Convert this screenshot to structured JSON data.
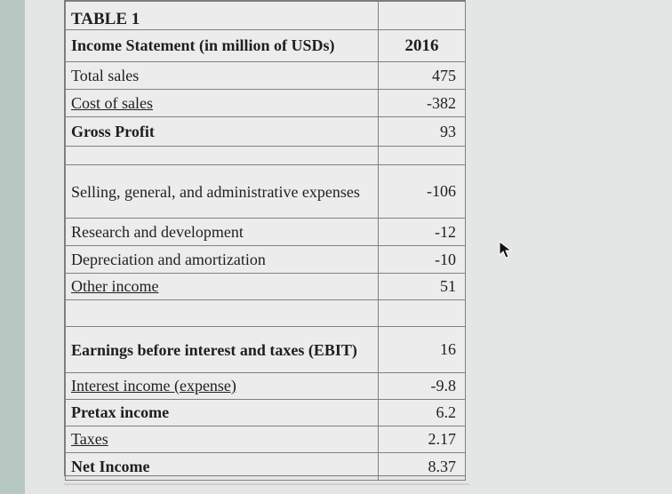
{
  "table": {
    "caption": "TABLE 1",
    "header": {
      "label": "Income Statement (in million of USDs)",
      "year": "2016"
    },
    "rows": [
      {
        "label": "Total sales",
        "value": "475"
      },
      {
        "label": "Cost of sales",
        "value": "-382"
      },
      {
        "label": "Gross Profit",
        "value": "93"
      },
      {
        "label": "",
        "value": ""
      },
      {
        "label": "Selling, general, and administrative expenses",
        "value": "-106"
      },
      {
        "label": "Research and development",
        "value": "-12"
      },
      {
        "label": "Depreciation and amortization",
        "value": "-10"
      },
      {
        "label": "Other income",
        "value": "51"
      },
      {
        "label": "",
        "value": ""
      },
      {
        "label": "Earnings before interest and taxes (EBIT)",
        "value": "16"
      },
      {
        "label": "Interest income (expense)",
        "value": "-9.8"
      },
      {
        "label": "Pretax income",
        "value": "6.2"
      },
      {
        "label": "Taxes",
        "value": "2.17"
      },
      {
        "label": "Net Income",
        "value": "8.37"
      }
    ]
  },
  "icons": {
    "cursor": "mouse-pointer-icon"
  }
}
